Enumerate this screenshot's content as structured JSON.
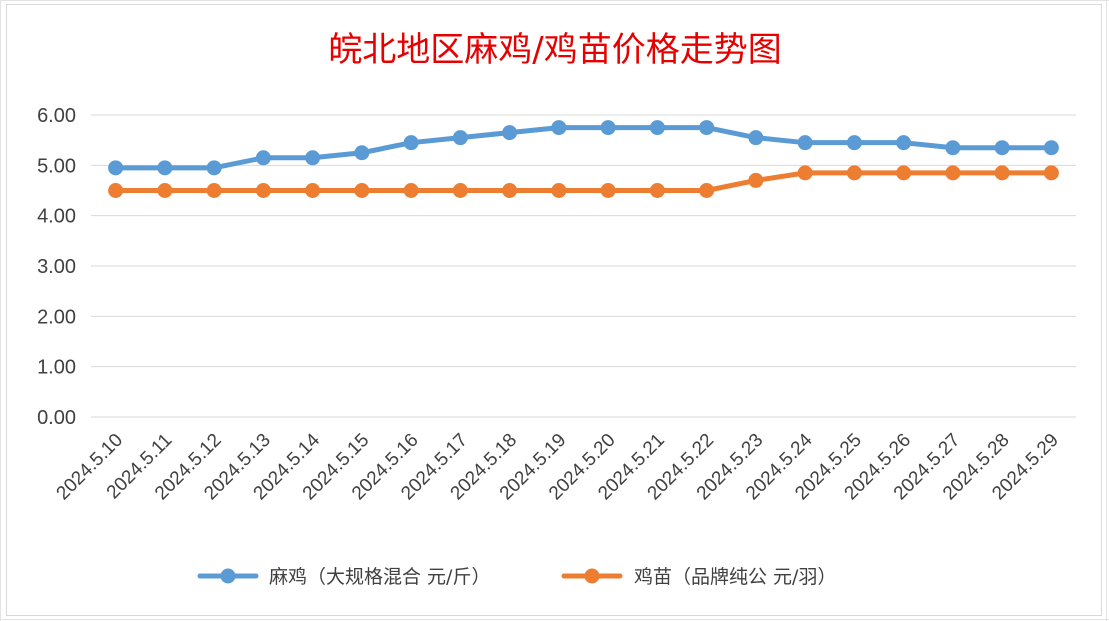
{
  "chart_data": {
    "type": "line",
    "title": "皖北地区麻鸡/鸡苗价格走势图",
    "xlabel": "",
    "ylabel": "",
    "ylim": [
      0,
      6
    ],
    "yticks": [
      "0.00",
      "1.00",
      "2.00",
      "3.00",
      "4.00",
      "5.00",
      "6.00"
    ],
    "grid": true,
    "legend_position": "bottom",
    "categories": [
      "2024.5.10",
      "2024.5.11",
      "2024.5.12",
      "2024.5.13",
      "2024.5.14",
      "2024.5.15",
      "2024.5.16",
      "2024.5.17",
      "2024.5.18",
      "2024.5.19",
      "2024.5.20",
      "2024.5.21",
      "2024.5.22",
      "2024.5.23",
      "2024.5.24",
      "2024.5.25",
      "2024.5.26",
      "2024.5.27",
      "2024.5.28",
      "2024.5.29"
    ],
    "series": [
      {
        "name": "麻鸡（大规格混合 元/斤）",
        "color": "#5b9bd5",
        "values": [
          4.95,
          4.95,
          4.95,
          5.15,
          5.15,
          5.25,
          5.45,
          5.55,
          5.65,
          5.75,
          5.75,
          5.75,
          5.75,
          5.55,
          5.45,
          5.45,
          5.45,
          5.35,
          5.35,
          5.35
        ]
      },
      {
        "name": "鸡苗（品牌纯公 元/羽）",
        "color": "#ed7d31",
        "values": [
          4.5,
          4.5,
          4.5,
          4.5,
          4.5,
          4.5,
          4.5,
          4.5,
          4.5,
          4.5,
          4.5,
          4.5,
          4.5,
          4.7,
          4.85,
          4.85,
          4.85,
          4.85,
          4.85,
          4.85
        ]
      }
    ]
  }
}
